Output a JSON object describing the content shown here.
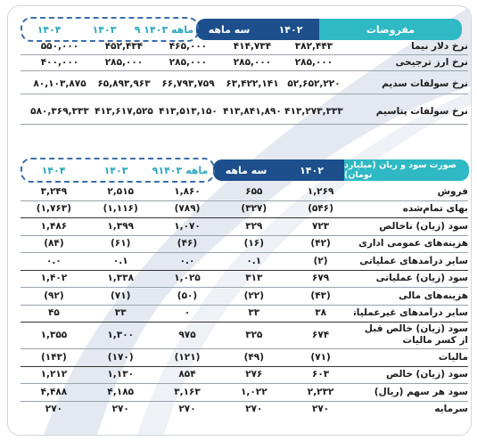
{
  "assumptions": {
    "title": "مفروضات",
    "col_headers": [
      "۱۴۰۲",
      "سه ماهه",
      "۹ ماهه ۱۴۰۳",
      "۱۴۰۳",
      "۱۴۰۴"
    ],
    "rows": [
      {
        "label": "نرخ دلار نیما",
        "values": [
          "۳۸۲,۴۴۳",
          "۴۱۴,۷۳۴",
          "۴۶۵,۰۰۰",
          "۴۵۲,۴۳۴",
          "۵۵۰,۰۰۰"
        ]
      },
      {
        "label": "نرخ ارز ترجیحی",
        "values": [
          "۲۸۵,۰۰۰",
          "۲۸۵,۰۰۰",
          "۲۸۵,۰۰۰",
          "۲۸۵,۰۰۰",
          "۴۰۰,۰۰۰"
        ]
      },
      {
        "label": "نرخ سولفات سدیم",
        "values": [
          "۵۲,۶۵۲,۲۲۰",
          "۶۳,۴۲۲,۱۴۱",
          "۶۶,۷۹۳,۷۵۹",
          "۶۵,۸۹۳,۹۶۳",
          "۸۰,۱۰۳,۸۷۵"
        ]
      },
      {
        "label": "نرخ سولفات پتاسیم",
        "values": [
          "۴۱۳,۲۷۳,۳۳۳",
          "۴۱۳,۸۴۱,۸۹۰",
          "۴۱۳,۵۱۳,۱۵۰",
          "۴۱۳,۶۱۷,۵۲۵",
          "۵۸۰,۳۶۹,۳۳۳"
        ]
      }
    ]
  },
  "income": {
    "title": "صورت سود و زیان (میلیارد تومان)",
    "col_headers": [
      "۱۴۰۲",
      "سه ماهه",
      "۹ماهه ۱۴۰۳",
      "۱۴۰۳",
      "۱۴۰۴"
    ],
    "rows": [
      {
        "label": "فروش",
        "values": [
          "۱,۲۶۹",
          "۶۵۵",
          "۱,۸۶۰",
          "۲,۵۱۵",
          "۳,۲۴۹"
        ]
      },
      {
        "label": "بهای تمام‌شده",
        "values": [
          "(۵۴۶)",
          "(۳۲۷)",
          "(۷۸۹)",
          "(۱,۱۱۶)",
          "(۱,۷۶۳)"
        ]
      },
      {
        "label": "سود (زیان) ناخالص",
        "values": [
          "۷۲۳",
          "۳۲۹",
          "۱,۰۷۰",
          "۱,۳۹۹",
          "۱,۴۸۶"
        ]
      },
      {
        "label": "هزینه‌های عمومی اداری",
        "values": [
          "(۴۲)",
          "(۱۶)",
          "(۴۶)",
          "(۶۱)",
          "(۸۴)"
        ]
      },
      {
        "label": "سایر درآمدهای عملیاتی",
        "values": [
          "(۲)",
          "۰.۱",
          "۰.۰",
          "۰.۱",
          "۰.۰"
        ]
      },
      {
        "label": "سود (زیان) عملیاتی",
        "values": [
          "۶۷۹",
          "۳۱۳",
          "۱,۰۲۵",
          "۱,۳۳۸",
          "۱,۴۰۲"
        ]
      },
      {
        "label": "هزینه‌های مالی",
        "values": [
          "(۴۳)",
          "(۲۲)",
          "(۵۰)",
          "(۷۱)",
          "(۹۲)"
        ]
      },
      {
        "label": "سایر درآمدهای غیرعملیاتی",
        "values": [
          "۳۸",
          "۳۳",
          "۰",
          "۳۳",
          "۴۵"
        ]
      },
      {
        "label": "سود (زیان) خالص قبل از کسر مالیات",
        "values": [
          "۶۷۴",
          "۳۲۵",
          "۹۷۵",
          "۱,۳۰۰",
          "۱,۳۵۵"
        ]
      },
      {
        "label": "مالیات",
        "values": [
          "(۷۱)",
          "(۴۹)",
          "(۱۲۱)",
          "(۱۷۰)",
          "(۱۴۳)"
        ]
      },
      {
        "label": "سود (زیان) خالص",
        "values": [
          "۶۰۳",
          "۲۷۶",
          "۸۵۴",
          "۱,۱۳۰",
          "۱,۲۱۲"
        ]
      },
      {
        "label": "سود هر سهم (ریال)",
        "values": [
          "۲,۲۳۲",
          "۱,۰۲۲",
          "۳,۱۶۳",
          "۴,۱۸۵",
          "۴,۴۸۸"
        ]
      },
      {
        "label": "سرمایه",
        "values": [
          "۲۷۰",
          "۲۷۰",
          "۲۷۰",
          "۲۷۰",
          "۲۷۰"
        ]
      }
    ]
  },
  "colors": {
    "teal": "#2fb9c4",
    "navy": "#1c4f8c",
    "dash": "#3a6ea8"
  }
}
